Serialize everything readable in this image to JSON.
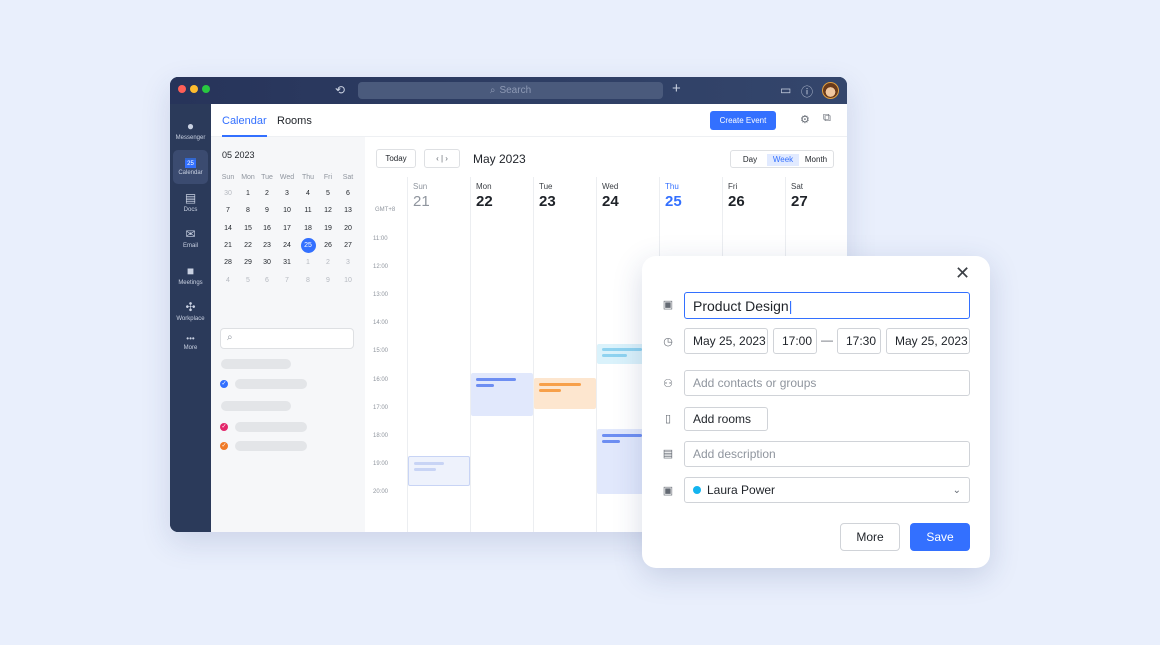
{
  "titlebar": {
    "search_placeholder": "Search",
    "traffic_colors": [
      "#ff5f57",
      "#febc2e",
      "#28c840"
    ]
  },
  "sidebar": {
    "items": [
      {
        "label": "Messenger",
        "icon": "chat-bubbles-icon"
      },
      {
        "label": "Calendar",
        "icon": "calendar-icon",
        "badge": "25"
      },
      {
        "label": "Docs",
        "icon": "docs-icon"
      },
      {
        "label": "Email",
        "icon": "envelope-icon"
      },
      {
        "label": "Meetings",
        "icon": "video-camera-icon"
      },
      {
        "label": "Workplace",
        "icon": "grid-icon"
      },
      {
        "label": "More",
        "icon": "more-dots-icon"
      }
    ]
  },
  "header": {
    "tabs": [
      "Calendar",
      "Rooms"
    ],
    "create_event": "Create Event"
  },
  "mini_calendar": {
    "title": "05 2023",
    "weekdays": [
      "Sun",
      "Mon",
      "Tue",
      "Wed",
      "Thu",
      "Fri",
      "Sat"
    ],
    "weeks": [
      [
        "30",
        "1",
        "2",
        "3",
        "4",
        "5",
        "6"
      ],
      [
        "7",
        "8",
        "9",
        "10",
        "11",
        "12",
        "13"
      ],
      [
        "14",
        "15",
        "16",
        "17",
        "18",
        "19",
        "20"
      ],
      [
        "21",
        "22",
        "23",
        "24",
        "25",
        "26",
        "27"
      ],
      [
        "28",
        "29",
        "30",
        "31",
        "1",
        "2",
        "3"
      ],
      [
        "4",
        "5",
        "6",
        "7",
        "8",
        "9",
        "10"
      ]
    ],
    "selected": "25"
  },
  "toolbar": {
    "today": "Today",
    "month_title": "May 2023",
    "views": [
      "Day",
      "Week",
      "Month"
    ],
    "active_view": "Week"
  },
  "week": {
    "timezone": "GMT+8",
    "days": [
      {
        "name": "Sun",
        "date": "21"
      },
      {
        "name": "Mon",
        "date": "22"
      },
      {
        "name": "Tue",
        "date": "23"
      },
      {
        "name": "Wed",
        "date": "24"
      },
      {
        "name": "Thu",
        "date": "25"
      },
      {
        "name": "Fri",
        "date": "26"
      },
      {
        "name": "Sat",
        "date": "27"
      }
    ],
    "hours": [
      "11:00",
      "12:00",
      "13:00",
      "14:00",
      "15:00",
      "16:00",
      "17:00",
      "18:00",
      "19:00",
      "20:00"
    ]
  },
  "colors": {
    "accent": "#3370ff"
  },
  "dialog": {
    "title_value": "Product Design",
    "start_date": "May 25, 2023",
    "start_time": "17:00",
    "dash": "—",
    "end_time": "17:30",
    "end_date": "May 25, 2023",
    "contacts_placeholder": "Add contacts or groups",
    "add_rooms": "Add rooms",
    "description_placeholder": "Add description",
    "calendar_owner": "Laura Power",
    "owner_color": "#14b4ef",
    "more": "More",
    "save": "Save"
  }
}
